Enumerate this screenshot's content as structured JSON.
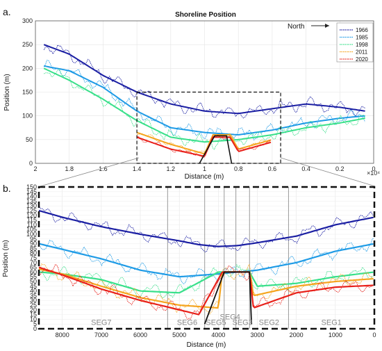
{
  "colors": {
    "1966": "#1b1fa3",
    "1985": "#1e9be6",
    "1998": "#38e08a",
    "2011": "#f5a51f",
    "2020": "#e8201a"
  },
  "chart_data": [
    {
      "panel_label": "a.",
      "type": "line",
      "title": "Shoreline Position",
      "xlabel": "Distance (m)",
      "ylabel": "Position (m)",
      "x_multiplier_label": "×10⁴",
      "xlim": [
        20000,
        0
      ],
      "ylim": [
        0,
        300
      ],
      "x_reversed": true,
      "xticks": [
        20000,
        18000,
        16000,
        14000,
        12000,
        10000,
        8000,
        6000,
        4000,
        2000,
        0
      ],
      "xtick_labels": [
        "2",
        "1.8",
        "1.6",
        "1.4",
        "1.2",
        "1",
        "0.8",
        "0.6",
        "0.4",
        "0.2",
        "0"
      ],
      "yticks": [
        0,
        50,
        100,
        150,
        200,
        250,
        300
      ],
      "grid": true,
      "legend": {
        "placement": "top-right",
        "entries": [
          "1966",
          "1985",
          "1998",
          "2011",
          "2020"
        ]
      },
      "annotation": "North",
      "inset_box_x": [
        5500,
        14000
      ],
      "inset_box_y": [
        0,
        150
      ],
      "series": [
        {
          "name": "1966",
          "x": [
            19500,
            18000,
            16000,
            14000,
            12000,
            10000,
            8000,
            6000,
            4000,
            2000,
            500
          ],
          "values": [
            250,
            230,
            185,
            150,
            125,
            110,
            105,
            115,
            125,
            118,
            110
          ]
        },
        {
          "name": "1985",
          "x": [
            19500,
            18000,
            16000,
            14000,
            12000,
            10000,
            8000,
            6000,
            4000,
            2000,
            500
          ],
          "values": [
            205,
            195,
            160,
            110,
            75,
            65,
            60,
            70,
            85,
            95,
            100
          ]
        },
        {
          "name": "1998",
          "x": [
            19500,
            18000,
            16000,
            14000,
            12000,
            10000,
            8000,
            6000,
            4000,
            2000,
            500
          ],
          "values": [
            200,
            175,
            135,
            90,
            55,
            45,
            50,
            60,
            75,
            85,
            95
          ]
        }
      ],
      "inset_series": [
        {
          "name": "2011",
          "x": [
            14000,
            12000,
            10000,
            9500,
            9000,
            8500,
            8000,
            6000
          ],
          "values": [
            65,
            40,
            20,
            60,
            60,
            60,
            30,
            50
          ]
        },
        {
          "name": "2020",
          "x": [
            14000,
            12000,
            10000,
            9500,
            9000,
            8500,
            8000,
            6000
          ],
          "values": [
            55,
            30,
            15,
            55,
            55,
            55,
            25,
            45
          ]
        }
      ]
    },
    {
      "panel_label": "b.",
      "type": "line",
      "xlabel": "Distance (m)",
      "ylabel": "Position (m)",
      "xlim": [
        8600,
        0
      ],
      "ylim": [
        0,
        150
      ],
      "x_reversed": true,
      "xticks": [
        8000,
        7000,
        6000,
        5000,
        4000,
        3000,
        2000,
        1000,
        0
      ],
      "yticks": [
        0,
        5,
        10,
        15,
        20,
        25,
        30,
        35,
        40,
        45,
        50,
        55,
        60,
        65,
        70,
        75,
        80,
        85,
        90,
        95,
        100,
        105,
        110,
        115,
        120,
        125,
        130,
        135,
        140,
        145,
        150
      ],
      "grid": true,
      "segment_boundaries": [
        5300,
        4350,
        3850,
        3550,
        3200,
        2200
      ],
      "segments": [
        {
          "label": "SEG7",
          "x": 7000
        },
        {
          "label": "SEG6",
          "x": 4800
        },
        {
          "label": "SEG5",
          "x": 4060
        },
        {
          "label": "SEG4",
          "x": 3700
        },
        {
          "label": "SEG3",
          "x": 3380
        },
        {
          "label": "SEG2",
          "x": 2700
        },
        {
          "label": "SEG1",
          "x": 1100
        }
      ],
      "series": [
        {
          "name": "1966",
          "x": [
            8600,
            8000,
            7000,
            6000,
            5000,
            4500,
            4000,
            3500,
            3000,
            2000,
            1000,
            0
          ],
          "values": [
            125,
            118,
            108,
            100,
            93,
            89,
            87,
            88,
            91,
            98,
            110,
            118
          ]
        },
        {
          "name": "1985",
          "x": [
            8600,
            8000,
            7000,
            6000,
            5000,
            4000,
            3500,
            3000,
            2000,
            1000,
            0
          ],
          "values": [
            90,
            84,
            74,
            62,
            55,
            58,
            60,
            62,
            70,
            82,
            90
          ]
        },
        {
          "name": "1998",
          "x": [
            8600,
            8000,
            7000,
            6000,
            5000,
            4000,
            3200,
            3000,
            2000,
            1000,
            0
          ],
          "values": [
            60,
            58,
            52,
            40,
            38,
            60,
            60,
            45,
            48,
            55,
            60
          ]
        },
        {
          "name": "2011",
          "x": [
            8600,
            8000,
            7000,
            6000,
            5000,
            4000,
            3900,
            3200,
            3100,
            2000,
            1000,
            0
          ],
          "values": [
            63,
            58,
            45,
            33,
            25,
            22,
            60,
            60,
            35,
            45,
            50,
            53
          ]
        },
        {
          "name": "2020",
          "x": [
            8600,
            8000,
            7000,
            6000,
            5000,
            4500,
            3900,
            3200,
            3100,
            2000,
            1000,
            0
          ],
          "values": [
            65,
            57,
            42,
            30,
            20,
            15,
            60,
            60,
            22,
            38,
            44,
            46
          ]
        }
      ]
    }
  ]
}
